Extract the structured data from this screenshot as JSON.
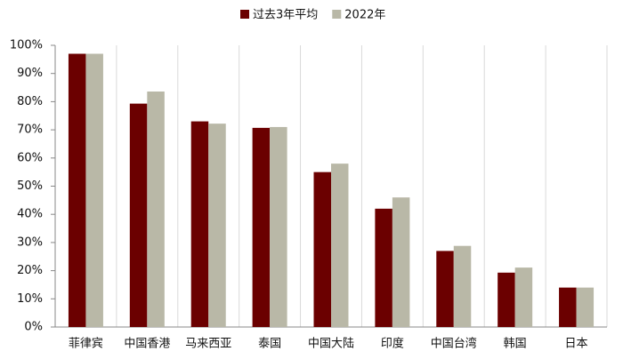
{
  "chart_data": {
    "type": "bar",
    "categories": [
      "菲律宾",
      "中国香港",
      "马来西亚",
      "泰国",
      "中国大陆",
      "印度",
      "中国台湾",
      "韩国",
      "日本"
    ],
    "series": [
      {
        "name": "过去3年平均",
        "color": "#6b0000",
        "values": [
          97,
          79.3,
          73,
          70.7,
          55,
          42,
          27,
          19.3,
          14
        ]
      },
      {
        "name": "2022年",
        "color": "#b9b8a7",
        "values": [
          97,
          83.6,
          72.2,
          71,
          58,
          46,
          28.8,
          21.1,
          14
        ]
      }
    ],
    "ylim": [
      0,
      100
    ],
    "yticks": [
      {
        "value": 0,
        "label": "0%"
      },
      {
        "value": 10,
        "label": "10%"
      },
      {
        "value": 20,
        "label": "20%"
      },
      {
        "value": 30,
        "label": "30%"
      },
      {
        "value": 40,
        "label": "40%"
      },
      {
        "value": 50,
        "label": "50%"
      },
      {
        "value": 60,
        "label": "60%"
      },
      {
        "value": 70,
        "label": "70%"
      },
      {
        "value": 80,
        "label": "80%"
      },
      {
        "value": 90,
        "label": "90%"
      },
      {
        "value": 100,
        "label": "100%"
      }
    ],
    "legend": "top"
  }
}
